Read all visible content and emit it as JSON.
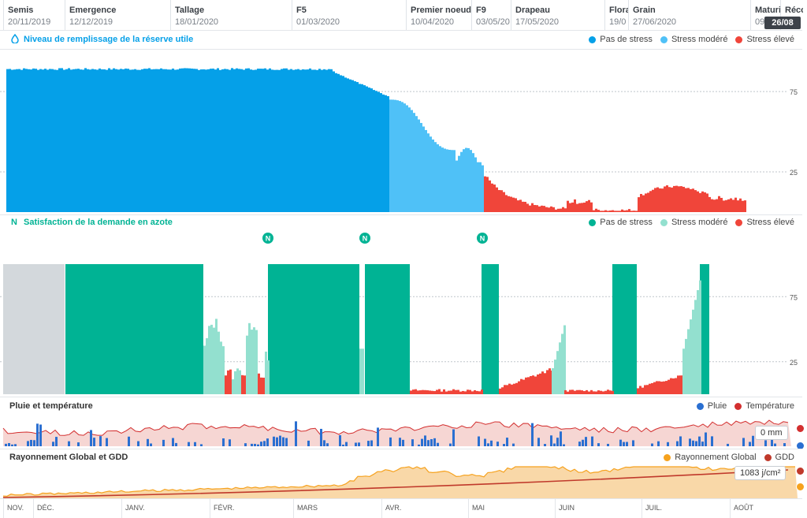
{
  "stages": [
    {
      "name": "Semis",
      "date": "20/11/2019"
    },
    {
      "name": "Emergence",
      "date": "12/12/2019"
    },
    {
      "name": "Tallage",
      "date": "18/01/2020"
    },
    {
      "name": "F5",
      "date": "01/03/2020"
    },
    {
      "name": "Premier noeud",
      "date": "10/04/2020"
    },
    {
      "name": "F9",
      "date": "03/05/20"
    },
    {
      "name": "Drapeau",
      "date": "17/05/2020"
    },
    {
      "name": "Flora",
      "date": "19/0"
    },
    {
      "name": "Grain",
      "date": "27/06/2020"
    },
    {
      "name": "Maturi",
      "date": "09"
    },
    {
      "name": "Réco",
      "date": ""
    }
  ],
  "current_day_badge": "26/08",
  "months": [
    "NOV.",
    "DÉC.",
    "JANV.",
    "FÉVR.",
    "MARS",
    "AVR.",
    "MAI",
    "JUIN",
    "JUIL.",
    "AOÛT"
  ],
  "colors": {
    "no_stress": "#05a0e8",
    "moderate_stress": "#4fc1f7",
    "high_stress": "#f0453a",
    "n_no_stress": "#00b394",
    "n_moderate_stress": "#93e0cf",
    "n_high_stress": "#f0453a",
    "n_inactive": "#d3d8dc",
    "rain": "#2a6fd1",
    "temperature": "#d32f2f",
    "temp_fill": "#f6d6d3",
    "radiation": "#f6a21e",
    "radiation_fill": "#f9d8a8",
    "gdd": "#c0392b"
  },
  "water_panel": {
    "title": "Niveau de remplissage de la réserve utile",
    "icon": "water-drop-icon",
    "legend": [
      "Pas de stress",
      "Stress modéré",
      "Stress élevé"
    ],
    "y_ticks": [
      "75",
      "25"
    ]
  },
  "nitrogen_panel": {
    "title": "Satisfaction de la demande en azote",
    "icon_letter": "N",
    "legend": [
      "Pas de stress",
      "Stress modéré",
      "Stress élevé"
    ],
    "y_ticks": [
      "75",
      "25"
    ],
    "marker_letter": "N"
  },
  "rain_panel": {
    "title": "Pluie et température",
    "legend": [
      "Pluie",
      "Température"
    ],
    "tooltip": "0 mm"
  },
  "radiation_panel": {
    "title": "Rayonnement Global et GDD",
    "legend": [
      "Rayonnement Global",
      "GDD"
    ],
    "tooltip": "1083 j/cm²"
  },
  "chart_data": [
    {
      "type": "bar",
      "title": "Niveau de remplissage de la réserve utile",
      "ylim": [
        0,
        100
      ],
      "grid": true,
      "series": [
        {
          "name": "Pas de stress",
          "segments": [
            {
              "start": 0,
              "end": 0.45,
              "values": [
                88,
                89,
                89,
                90,
                89
              ]
            },
            {
              "start": 0.45,
              "end": 0.6,
              "values": [
                88,
                87,
                84,
                80,
                75
              ]
            }
          ]
        },
        {
          "name": "Stress modéré",
          "range": [
            0.606,
            0.756
          ],
          "values": [
            72,
            66,
            60,
            52,
            45,
            32,
            25
          ]
        },
        {
          "name": "Stress élevé",
          "range": [
            0.756,
            1.0
          ],
          "values": [
            20,
            12,
            6,
            3,
            2,
            1
          ]
        }
      ]
    },
    {
      "type": "bar",
      "title": "Satisfaction de la demande en azote",
      "ylim": [
        0,
        100
      ],
      "grid": true,
      "markers": [
        "N",
        "N",
        "N"
      ]
    },
    {
      "type": "bar",
      "title": "Pluie et température",
      "series": [
        {
          "name": "Pluie"
        },
        {
          "name": "Température"
        }
      ]
    },
    {
      "type": "area",
      "title": "Rayonnement Global et GDD",
      "series": [
        {
          "name": "Rayonnement Global"
        },
        {
          "name": "GDD"
        }
      ]
    }
  ]
}
